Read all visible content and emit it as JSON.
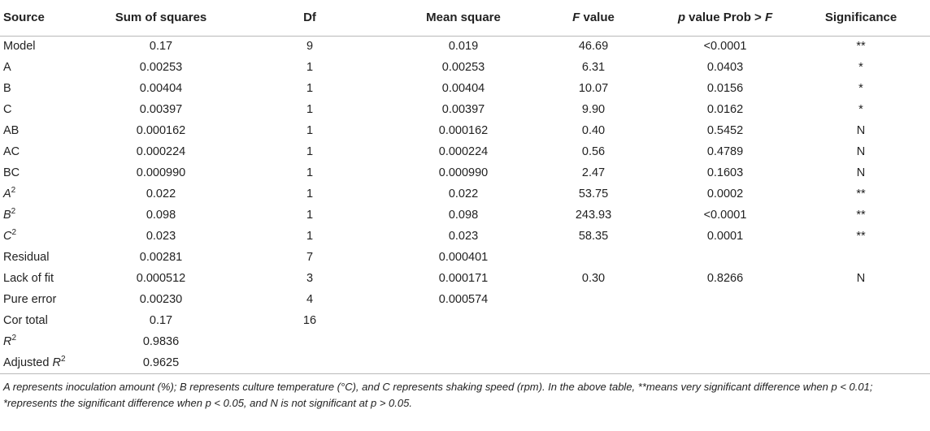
{
  "table": {
    "headers": [
      {
        "pre_italic": "",
        "text": "Source",
        "post_italic": ""
      },
      {
        "pre_italic": "",
        "text": "Sum of squares",
        "post_italic": ""
      },
      {
        "pre_italic": "",
        "text": "Df",
        "post_italic": ""
      },
      {
        "pre_italic": "",
        "text": "Mean square",
        "post_italic": ""
      },
      {
        "pre_italic": "F",
        "text": " value",
        "post_italic": ""
      },
      {
        "pre_italic": "p",
        "text": " value Prob > ",
        "post_italic": "F"
      },
      {
        "pre_italic": "",
        "text": "Significance",
        "post_italic": ""
      }
    ],
    "rows": [
      {
        "source": "Model",
        "source_italic": "",
        "source_sup": "",
        "cells": [
          "0.17",
          "9",
          "0.019",
          "46.69",
          "<0.0001",
          "**"
        ]
      },
      {
        "source": "A",
        "source_italic": "",
        "source_sup": "",
        "cells": [
          "0.00253",
          "1",
          "0.00253",
          "6.31",
          "0.0403",
          "*"
        ]
      },
      {
        "source": "B",
        "source_italic": "",
        "source_sup": "",
        "cells": [
          "0.00404",
          "1",
          "0.00404",
          "10.07",
          "0.0156",
          "*"
        ]
      },
      {
        "source": "C",
        "source_italic": "",
        "source_sup": "",
        "cells": [
          "0.00397",
          "1",
          "0.00397",
          "9.90",
          "0.0162",
          "*"
        ]
      },
      {
        "source": "AB",
        "source_italic": "",
        "source_sup": "",
        "cells": [
          "0.000162",
          "1",
          "0.000162",
          "0.40",
          "0.5452",
          "N"
        ]
      },
      {
        "source": "AC",
        "source_italic": "",
        "source_sup": "",
        "cells": [
          "0.000224",
          "1",
          "0.000224",
          "0.56",
          "0.4789",
          "N"
        ]
      },
      {
        "source": "BC",
        "source_italic": "",
        "source_sup": "",
        "cells": [
          "0.000990",
          "1",
          "0.000990",
          "2.47",
          "0.1603",
          "N"
        ]
      },
      {
        "source": "",
        "source_italic": "A",
        "source_sup": "2",
        "cells": [
          "0.022",
          "1",
          "0.022",
          "53.75",
          "0.0002",
          "**"
        ]
      },
      {
        "source": "",
        "source_italic": "B",
        "source_sup": "2",
        "cells": [
          "0.098",
          "1",
          "0.098",
          "243.93",
          "<0.0001",
          "**"
        ]
      },
      {
        "source": "",
        "source_italic": "C",
        "source_sup": "2",
        "cells": [
          "0.023",
          "1",
          "0.023",
          "58.35",
          "0.0001",
          "**"
        ]
      },
      {
        "source": "Residual",
        "source_italic": "",
        "source_sup": "",
        "cells": [
          "0.00281",
          "7",
          "0.000401",
          "",
          "",
          ""
        ]
      },
      {
        "source": "Lack of fit",
        "source_italic": "",
        "source_sup": "",
        "cells": [
          "0.000512",
          "3",
          "0.000171",
          "0.30",
          "0.8266",
          "N"
        ]
      },
      {
        "source": "Pure error",
        "source_italic": "",
        "source_sup": "",
        "cells": [
          "0.00230",
          "4",
          "0.000574",
          "",
          "",
          ""
        ]
      },
      {
        "source": "Cor total",
        "source_italic": "",
        "source_sup": "",
        "cells": [
          "0.17",
          "16",
          "",
          "",
          "",
          ""
        ]
      },
      {
        "source": "",
        "source_italic": "R",
        "source_sup": "2",
        "cells": [
          "0.9836",
          "",
          "",
          "",
          "",
          ""
        ]
      },
      {
        "source": "Adjusted ",
        "source_italic": "R",
        "source_sup": "2",
        "cells": [
          "0.9625",
          "",
          "",
          "",
          "",
          ""
        ]
      }
    ]
  },
  "footnote": "A represents inoculation amount (%); B represents culture temperature (°C), and C represents shaking speed (rpm). In the above table, **means very significant difference when p < 0.01; *represents the significant difference when p < 0.05, and N is not significant at p > 0.05."
}
